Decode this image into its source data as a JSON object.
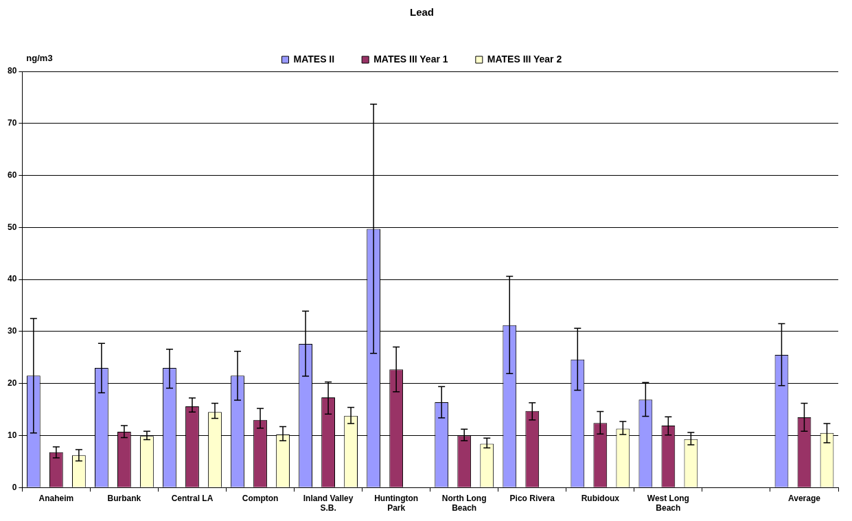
{
  "chart_data": {
    "type": "bar",
    "title": "Lead",
    "ylabel": "ng/m3",
    "categories": [
      "Anaheim",
      "Burbank",
      "Central LA",
      "Compton",
      "Inland Valley S.B.",
      "Huntington Park",
      "North Long Beach",
      "Pico Rivera",
      "Rubidoux",
      "West Long Beach",
      null,
      "Average"
    ],
    "series": [
      {
        "name": "MATES II",
        "color": "#9999ff",
        "values": [
          21.5,
          23,
          23,
          21.5,
          27.6,
          49.7,
          16.4,
          31.2,
          24.6,
          16.9,
          null,
          25.5
        ],
        "errors": [
          [
            10.5,
            32.5
          ],
          [
            18.2,
            27.7
          ],
          [
            19.1,
            26.6
          ],
          [
            16.8,
            26.2
          ],
          [
            21.4,
            33.9
          ],
          [
            25.8,
            73.7
          ],
          [
            13.4,
            19.4
          ],
          [
            21.9,
            40.6
          ],
          [
            18.7,
            30.6
          ],
          [
            13.7,
            20.2
          ],
          null,
          [
            19.6,
            31.5
          ]
        ]
      },
      {
        "name": "MATES III Year 1",
        "color": "#993366",
        "values": [
          6.8,
          10.7,
          15.6,
          13,
          17.3,
          22.7,
          10,
          14.7,
          12.4,
          11.9,
          null,
          13.5
        ],
        "errors": [
          [
            5.7,
            7.8
          ],
          [
            9.6,
            11.9
          ],
          [
            14.5,
            17.2
          ],
          [
            11.4,
            15.2
          ],
          [
            14.1,
            20.3
          ],
          [
            18.4,
            27
          ],
          [
            9,
            11.2
          ],
          [
            13,
            16.3
          ],
          [
            10.3,
            14.6
          ],
          [
            10.1,
            13.6
          ],
          null,
          [
            10.8,
            16.2
          ]
        ]
      },
      {
        "name": "MATES III Year 2",
        "color": "#ffffcc",
        "values": [
          6.2,
          9.9,
          14.5,
          10.2,
          13.8,
          null,
          8.4,
          null,
          11.3,
          9.3,
          null,
          10.5
        ],
        "errors": [
          [
            5.1,
            7.3
          ],
          [
            9.2,
            10.8
          ],
          [
            13.3,
            16.2
          ],
          [
            9,
            11.7
          ],
          [
            12.3,
            15.4
          ],
          null,
          [
            7.6,
            9.5
          ],
          null,
          [
            10.2,
            12.7
          ],
          [
            8.2,
            10.6
          ],
          null,
          [
            8.6,
            12.3
          ]
        ]
      }
    ],
    "ylim": [
      0,
      80
    ],
    "yticks": [
      0,
      10,
      20,
      30,
      40,
      50,
      60,
      70,
      80
    ],
    "grid": "y",
    "legend": "top"
  }
}
